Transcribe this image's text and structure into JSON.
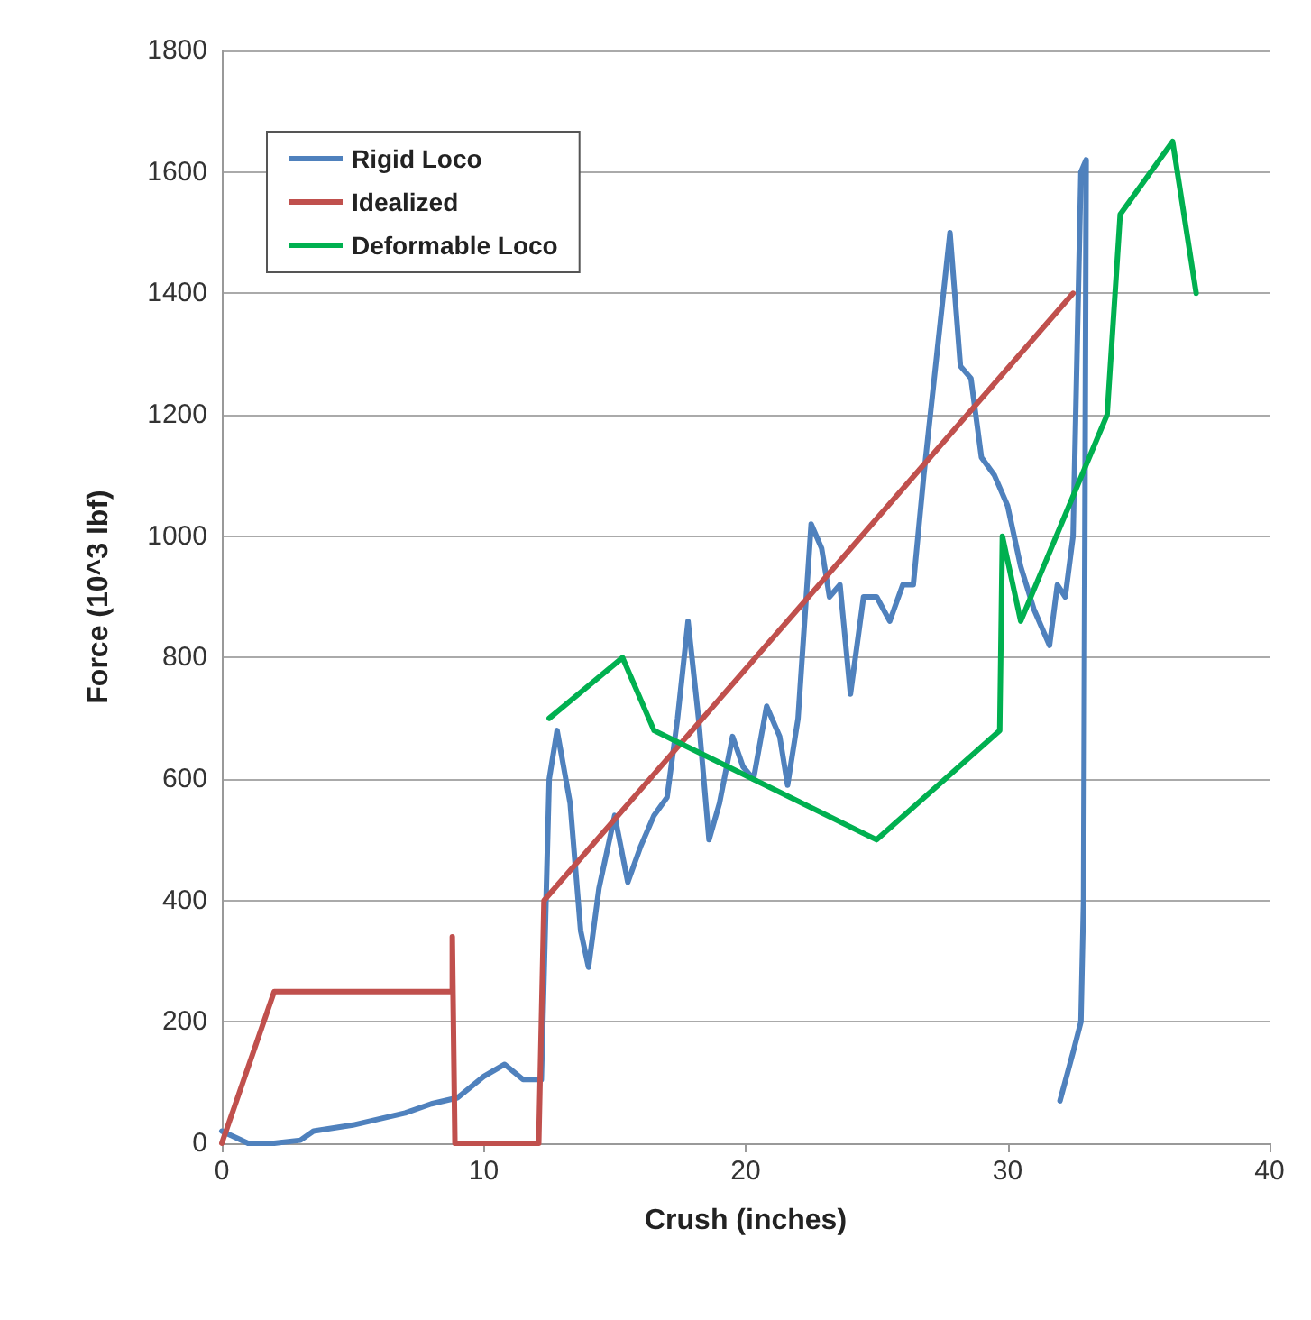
{
  "chart_data": {
    "type": "line",
    "xlabel": "Crush (inches)",
    "ylabel": "Force (10^3 lbf)",
    "xlim": [
      0,
      40
    ],
    "xticks": [
      0,
      10,
      20,
      30,
      40
    ],
    "ylim": [
      0,
      1800
    ],
    "yticks": [
      0,
      200,
      400,
      600,
      800,
      1000,
      1200,
      1400,
      1600,
      1800
    ],
    "grid": "y",
    "legend": "top left",
    "marker": "none",
    "line_style": "solid",
    "series": [
      {
        "name": "Rigid Loco",
        "color": "#4f81bd",
        "x": [
          0,
          0.5,
          1,
          2,
          3,
          3.5,
          5,
          6,
          7,
          8,
          9,
          10,
          10.8,
          11.5,
          12.2,
          12.5,
          12.8,
          13.3,
          13.7,
          14,
          14.4,
          15,
          15.5,
          16,
          16.5,
          17,
          17.4,
          17.8,
          18.2,
          18.6,
          19,
          19.5,
          19.9,
          20.3,
          20.8,
          21.3,
          21.6,
          22,
          22.5,
          22.9,
          23.2,
          23.6,
          24,
          24.5,
          25,
          25.5,
          26,
          26.4,
          26.8,
          27.3,
          27.8,
          28.2,
          28.6,
          29,
          29.5,
          30,
          30.5,
          31,
          31.6,
          31.9,
          32.2,
          32.5,
          32.8,
          33,
          32.9,
          32.8,
          32.5,
          32
        ],
        "values": [
          20,
          10,
          0,
          0,
          5,
          20,
          30,
          40,
          50,
          65,
          75,
          110,
          130,
          105,
          105,
          600,
          680,
          560,
          350,
          290,
          420,
          540,
          430,
          490,
          540,
          570,
          700,
          860,
          700,
          500,
          560,
          670,
          620,
          600,
          720,
          670,
          590,
          700,
          1020,
          980,
          900,
          920,
          740,
          900,
          900,
          860,
          920,
          920,
          1100,
          1300,
          1500,
          1280,
          1260,
          1130,
          1100,
          1050,
          950,
          880,
          820,
          920,
          900,
          1000,
          1600,
          1620,
          400,
          200,
          150,
          70
        ]
      },
      {
        "name": "Idealized",
        "color": "#c0504d",
        "x": [
          0,
          2,
          8.8,
          8.8,
          8.9,
          12.1,
          12.3,
          32.5
        ],
        "values": [
          0,
          250,
          250,
          340,
          0,
          0,
          400,
          1400
        ]
      },
      {
        "name": "Deformable Loco",
        "color": "#00b050",
        "x": [
          12.5,
          15.3,
          16.5,
          25,
          29.7,
          29.8,
          30.5,
          33.8,
          34.3,
          36.3,
          37.2
        ],
        "values": [
          700,
          800,
          680,
          500,
          680,
          1000,
          860,
          1200,
          1530,
          1650,
          1400
        ]
      }
    ]
  }
}
